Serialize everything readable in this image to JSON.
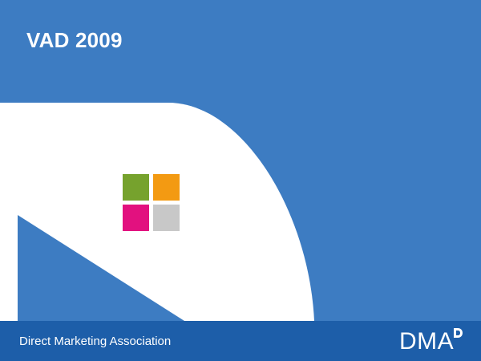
{
  "slide": {
    "title": "VAD 2009"
  },
  "colors": {
    "background_blue": "#3d7cc2",
    "footer_blue": "#1d5ea9",
    "white": "#ffffff",
    "square_green": "#76a22d",
    "square_orange": "#f39a12",
    "square_pink": "#e2117f",
    "square_grey": "#c8c8c8"
  },
  "footer": {
    "organization": "Direct Marketing Association",
    "logo_text": "DMA"
  },
  "icons": {
    "logo_squares": "four-colored-squares-logo",
    "dma_mark": "dma-d-mark-icon"
  }
}
